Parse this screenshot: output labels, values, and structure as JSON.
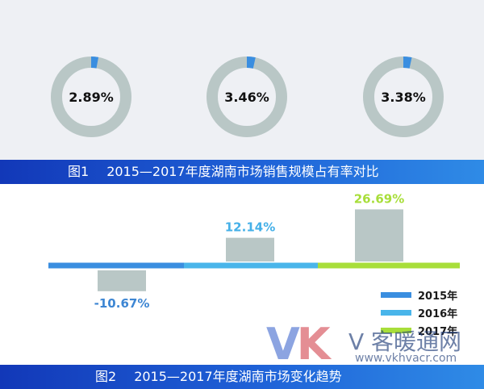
{
  "figure1": {
    "number": "图1",
    "caption": "2015—2017年度湖南市场销售规模占有率对比"
  },
  "figure2": {
    "number": "图2",
    "caption": "2015—2017年度湖南市场变化趋势"
  },
  "colors": {
    "ring_track": "#b9c7c6",
    "ring_highlight": "#3a8ee0",
    "bar_fill": "#b9c7c6",
    "s2015": "#3a8ee0",
    "s2016": "#49b5ea",
    "s2017": "#a8de3a",
    "label_2015": "#3d86d3",
    "label_2016": "#44b0e8",
    "label_2017": "#a8de3a"
  },
  "legend": {
    "items": [
      {
        "label": "2015年",
        "color": "#3a8ee0"
      },
      {
        "label": "2016年",
        "color": "#49b5ea"
      },
      {
        "label": "2017年",
        "color": "#a8de3a"
      }
    ]
  },
  "watermark": {
    "logo_v": "V",
    "logo_k": "K",
    "name": "V 客暖通网",
    "url": "www.vkhvacr.com"
  },
  "chart_data": [
    {
      "type": "pie",
      "subtype": "donut",
      "title": "图1  2015—2017年度湖南市场销售规模占有率对比",
      "categories": [
        "2015年",
        "2016年",
        "2017年"
      ],
      "values": [
        2.89,
        3.46,
        3.38
      ],
      "labels": [
        "2.89%",
        "3.46%",
        "3.38%"
      ],
      "unit": "%"
    },
    {
      "type": "bar",
      "title": "图2  2015—2017年度湖南市场变化趋势",
      "categories": [
        "2015年",
        "2016年",
        "2017年"
      ],
      "values": [
        -10.67,
        12.14,
        26.69
      ],
      "labels": [
        "-10.67%",
        "12.14%",
        "26.69%"
      ],
      "unit": "%",
      "legend_position": "bottom-right",
      "grid": false
    }
  ]
}
